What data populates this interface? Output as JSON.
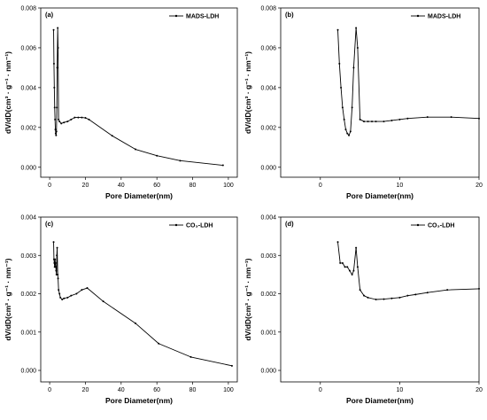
{
  "chart_data": [
    {
      "type": "line",
      "panel": "(a)",
      "legend": "MADS-LDH",
      "legend_position": "top-right",
      "xlabel": "Pore Diameter(nm)",
      "ylabel": "dV/dD(cm³ · g⁻¹ · nm⁻¹)",
      "xlim": [
        -5,
        105
      ],
      "ylim": [
        -0.0005,
        0.008
      ],
      "xticks": [
        0,
        20,
        40,
        60,
        80,
        100
      ],
      "xtick_labels": [
        "0",
        "20",
        "40",
        "60",
        "80",
        "100"
      ],
      "yticks": [
        0,
        0.002,
        0.004,
        0.006,
        0.008
      ],
      "ytick_labels": [
        "0.000",
        "0.002",
        "0.004",
        "0.006",
        "0.008"
      ],
      "series": [
        {
          "name": "MADS-LDH",
          "x": [
            2.2,
            2.4,
            2.6,
            2.8,
            3.0,
            3.2,
            3.4,
            3.6,
            3.8,
            4.0,
            4.2,
            4.5,
            4.7,
            5.0,
            5.5,
            6.5,
            8,
            10,
            12,
            14,
            16,
            18,
            20,
            22,
            35,
            48,
            60,
            73,
            97
          ],
          "y": [
            0.0069,
            0.0052,
            0.004,
            0.003,
            0.0024,
            0.0019,
            0.0017,
            0.0016,
            0.0018,
            0.003,
            0.005,
            0.007,
            0.006,
            0.0024,
            0.0023,
            0.0022,
            0.00225,
            0.0023,
            0.0024,
            0.0025,
            0.0025,
            0.0025,
            0.00248,
            0.0024,
            0.00158,
            0.0009,
            0.00058,
            0.00033,
            0.0001
          ]
        }
      ]
    },
    {
      "type": "line",
      "panel": "(b)",
      "legend": "MADS-LDH",
      "legend_position": "top-right",
      "xlabel": "Pore Diameter(nm)",
      "ylabel": "dV/dD(cm³ · g⁻¹ · nm⁻¹)",
      "xlim": [
        -5,
        20
      ],
      "ylim": [
        -0.0005,
        0.008
      ],
      "xticks": [
        0,
        10,
        20
      ],
      "xtick_labels": [
        "0",
        "10",
        "20"
      ],
      "yticks": [
        0,
        0.002,
        0.004,
        0.006,
        0.008
      ],
      "ytick_labels": [
        "0.000",
        "0.002",
        "0.004",
        "0.006",
        "0.008"
      ],
      "series": [
        {
          "name": "MADS-LDH",
          "x": [
            2.2,
            2.4,
            2.6,
            2.8,
            3.0,
            3.2,
            3.4,
            3.6,
            3.8,
            4.0,
            4.2,
            4.5,
            4.7,
            5.0,
            5.5,
            6.0,
            6.5,
            7,
            8,
            9,
            10,
            11,
            13.5,
            16.5,
            20
          ],
          "y": [
            0.0069,
            0.0052,
            0.004,
            0.003,
            0.0024,
            0.0019,
            0.0017,
            0.0016,
            0.0018,
            0.003,
            0.005,
            0.007,
            0.006,
            0.0024,
            0.0023,
            0.0023,
            0.0023,
            0.0023,
            0.0023,
            0.00235,
            0.0024,
            0.00245,
            0.00252,
            0.00252,
            0.00245
          ]
        }
      ]
    },
    {
      "type": "line",
      "panel": "(c)",
      "legend": "CO₃-LDH",
      "legend_position": "top-right",
      "xlabel": "Pore Diameter(nm)",
      "ylabel": "dV/dD(cm³ · g⁻¹ · nm⁻¹)",
      "xlim": [
        -5,
        105
      ],
      "ylim": [
        -0.0003,
        0.004
      ],
      "xticks": [
        0,
        20,
        40,
        60,
        80,
        100
      ],
      "xtick_labels": [
        "0",
        "20",
        "40",
        "60",
        "80",
        "100"
      ],
      "yticks": [
        0,
        0.001,
        0.002,
        0.003,
        0.004
      ],
      "ytick_labels": [
        "0.000",
        "0.001",
        "0.002",
        "0.003",
        "0.004"
      ],
      "series": [
        {
          "name": "CO₃-LDH",
          "x": [
            2.2,
            2.4,
            2.6,
            2.8,
            3.0,
            3.2,
            3.4,
            3.6,
            3.8,
            4.0,
            4.2,
            4.5,
            4.7,
            5.0,
            5.5,
            6,
            7,
            8,
            10,
            12,
            15,
            18,
            21,
            30,
            48,
            61,
            79,
            102
          ],
          "y": [
            0.00335,
            0.0029,
            0.0028,
            0.0027,
            0.0029,
            0.0028,
            0.0027,
            0.0026,
            0.0025,
            0.003,
            0.0032,
            0.0025,
            0.0024,
            0.0021,
            0.002,
            0.0019,
            0.00185,
            0.00188,
            0.0019,
            0.00195,
            0.002,
            0.0021,
            0.00215,
            0.0018,
            0.00123,
            0.0007,
            0.00035,
            0.00012
          ]
        }
      ]
    },
    {
      "type": "line",
      "panel": "(d)",
      "legend": "CO₃-LDH",
      "legend_position": "top-right",
      "xlabel": "Pore Diameter(nm)",
      "ylabel": "dV/dD(cm³ · g⁻¹ · nm⁻¹)",
      "xlim": [
        -5,
        20
      ],
      "ylim": [
        -0.0003,
        0.004
      ],
      "xticks": [
        0,
        10,
        20
      ],
      "xtick_labels": [
        "0",
        "10",
        "20"
      ],
      "yticks": [
        0,
        0.001,
        0.002,
        0.003,
        0.004
      ],
      "ytick_labels": [
        "0.000",
        "0.001",
        "0.002",
        "0.003",
        "0.004"
      ],
      "series": [
        {
          "name": "CO₃-LDH",
          "x": [
            2.2,
            2.5,
            2.8,
            3.1,
            3.4,
            3.7,
            4.0,
            4.2,
            4.5,
            4.7,
            5.0,
            5.5,
            6,
            7,
            8,
            9,
            10,
            11,
            12,
            13.5,
            16,
            20
          ],
          "y": [
            0.00335,
            0.0028,
            0.0028,
            0.0027,
            0.0027,
            0.0026,
            0.0025,
            0.0026,
            0.0032,
            0.0027,
            0.0021,
            0.00195,
            0.0019,
            0.00185,
            0.00186,
            0.00188,
            0.0019,
            0.00195,
            0.00198,
            0.00203,
            0.0021,
            0.00213
          ]
        }
      ]
    }
  ]
}
